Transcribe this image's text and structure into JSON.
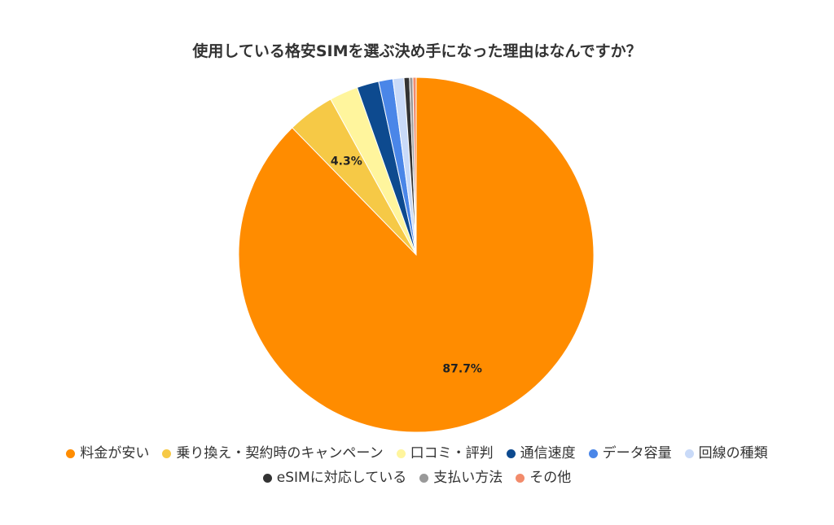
{
  "chart_data": {
    "type": "pie",
    "title": "使用している格安SIMを選ぶ決め手になった理由はなんですか？",
    "slices": [
      {
        "label": "料金が安い",
        "value": 87.7,
        "color": "#ff8c00",
        "data_label": "87.7%"
      },
      {
        "label": "乗り換え・契約時のキャンペーン",
        "value": 4.3,
        "color": "#f6c946",
        "data_label": "4.3%"
      },
      {
        "label": "口コミ・評判",
        "value": 2.6,
        "color": "#fff59d",
        "data_label": ""
      },
      {
        "label": "通信速度",
        "value": 2.0,
        "color": "#0d4a8f",
        "data_label": ""
      },
      {
        "label": "データ容量",
        "value": 1.3,
        "color": "#4a86e8",
        "data_label": ""
      },
      {
        "label": "回線の種類",
        "value": 1.0,
        "color": "#c9daf8",
        "data_label": ""
      },
      {
        "label": "eSIMに対応している",
        "value": 0.5,
        "color": "#333333",
        "data_label": ""
      },
      {
        "label": "支払い方法",
        "value": 0.3,
        "color": "#999999",
        "data_label": ""
      },
      {
        "label": "その他",
        "value": 0.3,
        "color": "#f28b6b",
        "data_label": ""
      }
    ],
    "legend_position": "bottom"
  }
}
